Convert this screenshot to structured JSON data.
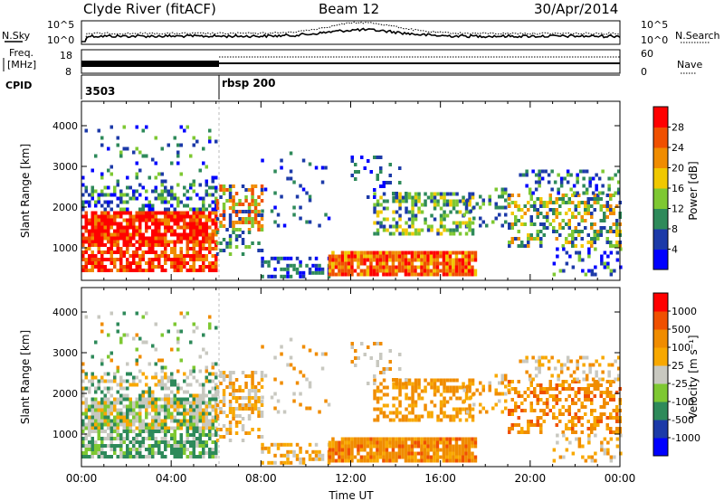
{
  "header": {
    "station": "Clyde River (fitACF)",
    "beam": "Beam 12",
    "date": "30/Apr/2014"
  },
  "noise_panel": {
    "left_label": "N.Sky",
    "right_label": "N.Search",
    "left_ticks": [
      "10^5",
      "10^0"
    ],
    "right_ticks": [
      "10^5",
      "10^0"
    ]
  },
  "freq_panel": {
    "left_label_line1": "Freq.",
    "left_label_line2": "[MHz]",
    "right_label": "Nave",
    "left_ticks": [
      "18",
      "8"
    ],
    "right_ticks": [
      "60",
      "0"
    ]
  },
  "cpid_panel": {
    "label": "CPID",
    "programs": [
      {
        "name": "3503",
        "start_hour": 0
      },
      {
        "name": "rbsp 200",
        "start_hour": 6
      }
    ]
  },
  "colors": {
    "power_scale": [
      "#0000ff",
      "#1c3aa8",
      "#2e8a5a",
      "#7ec832",
      "#f0c800",
      "#f08c00",
      "#f05000",
      "#ff0000"
    ],
    "velocity_scale": [
      "#ff0000",
      "#f05000",
      "#f08c00",
      "#f8a800",
      "#c8c8c0",
      "#7ec832",
      "#2e8a5a",
      "#1c3aa8",
      "#0000ff"
    ]
  },
  "chart_data": [
    {
      "type": "heatmap",
      "name": "power",
      "xlabel": "",
      "ylabel": "Slant Range [km]",
      "xlim": [
        0,
        24
      ],
      "ylim": [
        200,
        4600
      ],
      "y_ticks": [
        1000,
        2000,
        3000,
        4000
      ],
      "colorbar_label": "Power [dB]",
      "colorbar_ticks": [
        "4",
        "8",
        "12",
        "16",
        "20",
        "24",
        "28"
      ],
      "colorbar_range": [
        0,
        32
      ]
    },
    {
      "type": "heatmap",
      "name": "velocity",
      "xlabel": "Time UT",
      "ylabel": "Slant Range [km]",
      "xlim": [
        0,
        24
      ],
      "ylim": [
        200,
        4600
      ],
      "x_ticks": [
        "00:00",
        "04:00",
        "08:00",
        "12:00",
        "16:00",
        "20:00",
        "00:00"
      ],
      "y_ticks": [
        1000,
        2000,
        3000,
        4000
      ],
      "colorbar_label": "Velocity [m s⁻¹]",
      "colorbar_ticks": [
        "1000",
        "500",
        "100",
        "25",
        "-25",
        "-100",
        "-500",
        "-1000"
      ]
    }
  ]
}
